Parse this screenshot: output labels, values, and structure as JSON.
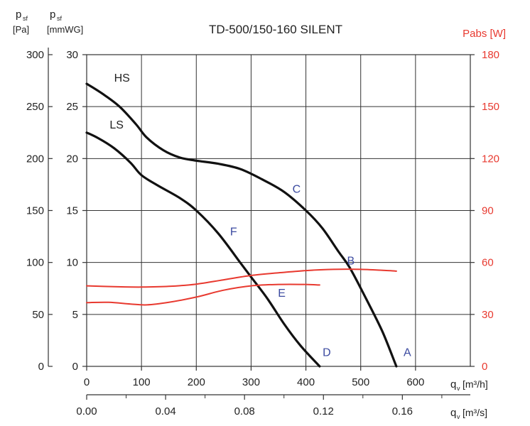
{
  "chart_data": {
    "type": "line",
    "title": "TD-500/150-160 SILENT",
    "colors": {
      "pressure": "#111111",
      "power": "#e8392f",
      "point_label": "#3b4aa0",
      "text": "#222222",
      "grid": "#333333"
    },
    "axes": {
      "y_pa": {
        "label_line1": "p",
        "label_sub1": "sf",
        "label_line2": "[Pa]",
        "range": [
          0,
          300
        ],
        "ticks": [
          "0",
          "50",
          "100",
          "150",
          "200",
          "250",
          "300"
        ]
      },
      "y_mmwg": {
        "label_line1": "p",
        "label_sub1": "sf",
        "label_line2": "[mmWG]",
        "range": [
          0,
          30
        ],
        "ticks": [
          "0",
          "5",
          "10",
          "15",
          "20",
          "25",
          "30"
        ]
      },
      "y_power": {
        "label": "Pabs [W]",
        "range": [
          0,
          180
        ],
        "ticks": [
          "0",
          "30",
          "60",
          "90",
          "120",
          "150",
          "180"
        ]
      },
      "x_m3h": {
        "label_q": "q",
        "label_sub": "v",
        "label_unit": "[m³/h]",
        "range": [
          0,
          700
        ],
        "ticks": [
          "0",
          "100",
          "200",
          "300",
          "400",
          "500",
          "600"
        ]
      },
      "x_m3s": {
        "label_q": "q",
        "label_sub": "v",
        "label_unit": "[m³/s]",
        "ticks": [
          "0.00",
          "0.04",
          "0.08",
          "0.12",
          "0.16"
        ],
        "tick_values": [
          0,
          0.04,
          0.08,
          0.12,
          0.16
        ]
      }
    },
    "series": [
      {
        "name": "HS",
        "kind": "pressure",
        "points": [
          [
            0,
            27.2
          ],
          [
            30,
            26.2
          ],
          [
            60,
            25
          ],
          [
            90,
            23.3
          ],
          [
            110,
            22
          ],
          [
            140,
            20.8
          ],
          [
            170,
            20.1
          ],
          [
            200,
            19.8
          ],
          [
            240,
            19.5
          ],
          [
            280,
            19
          ],
          [
            320,
            18
          ],
          [
            360,
            16.8
          ],
          [
            400,
            15
          ],
          [
            430,
            13.3
          ],
          [
            460,
            11
          ],
          [
            480,
            9.5
          ],
          [
            510,
            6.5
          ],
          [
            540,
            3.3
          ],
          [
            565,
            0
          ]
        ]
      },
      {
        "name": "LS",
        "kind": "pressure",
        "points": [
          [
            0,
            22.5
          ],
          [
            20,
            22
          ],
          [
            50,
            21
          ],
          [
            80,
            19.6
          ],
          [
            100,
            18.4
          ],
          [
            130,
            17.4
          ],
          [
            170,
            16.2
          ],
          [
            200,
            15
          ],
          [
            240,
            12.8
          ],
          [
            280,
            10
          ],
          [
            300,
            8.6
          ],
          [
            330,
            6.5
          ],
          [
            360,
            4.1
          ],
          [
            390,
            2
          ],
          [
            425,
            0
          ]
        ]
      },
      {
        "name": "",
        "kind": "power",
        "points": [
          [
            0,
            46.5
          ],
          [
            50,
            46
          ],
          [
            100,
            45.8
          ],
          [
            150,
            46.2
          ],
          [
            200,
            47.5
          ],
          [
            250,
            50
          ],
          [
            300,
            52.5
          ],
          [
            350,
            54
          ],
          [
            400,
            55.3
          ],
          [
            450,
            56
          ],
          [
            500,
            56
          ],
          [
            550,
            55.3
          ],
          [
            565,
            55
          ]
        ]
      },
      {
        "name": "",
        "kind": "power",
        "points": [
          [
            0,
            36.8
          ],
          [
            40,
            37
          ],
          [
            80,
            36
          ],
          [
            110,
            35.5
          ],
          [
            150,
            37
          ],
          [
            200,
            40
          ],
          [
            250,
            44
          ],
          [
            300,
            46.5
          ],
          [
            350,
            47.3
          ],
          [
            400,
            47.3
          ],
          [
            425,
            47
          ]
        ]
      }
    ],
    "point_labels": [
      {
        "text": "A",
        "x": 585,
        "y": 1.0
      },
      {
        "text": "B",
        "x": 482,
        "y": 9.8
      },
      {
        "text": "C",
        "x": 383,
        "y": 16.7
      },
      {
        "text": "D",
        "x": 438,
        "y": 1.0
      },
      {
        "text": "E",
        "x": 356,
        "y": 6.7
      },
      {
        "text": "F",
        "x": 268,
        "y": 12.6
      }
    ],
    "curve_labels": [
      {
        "text": "HS",
        "x": 50,
        "y": 27.4
      },
      {
        "text": "LS",
        "x": 42,
        "y": 22.9
      }
    ]
  }
}
